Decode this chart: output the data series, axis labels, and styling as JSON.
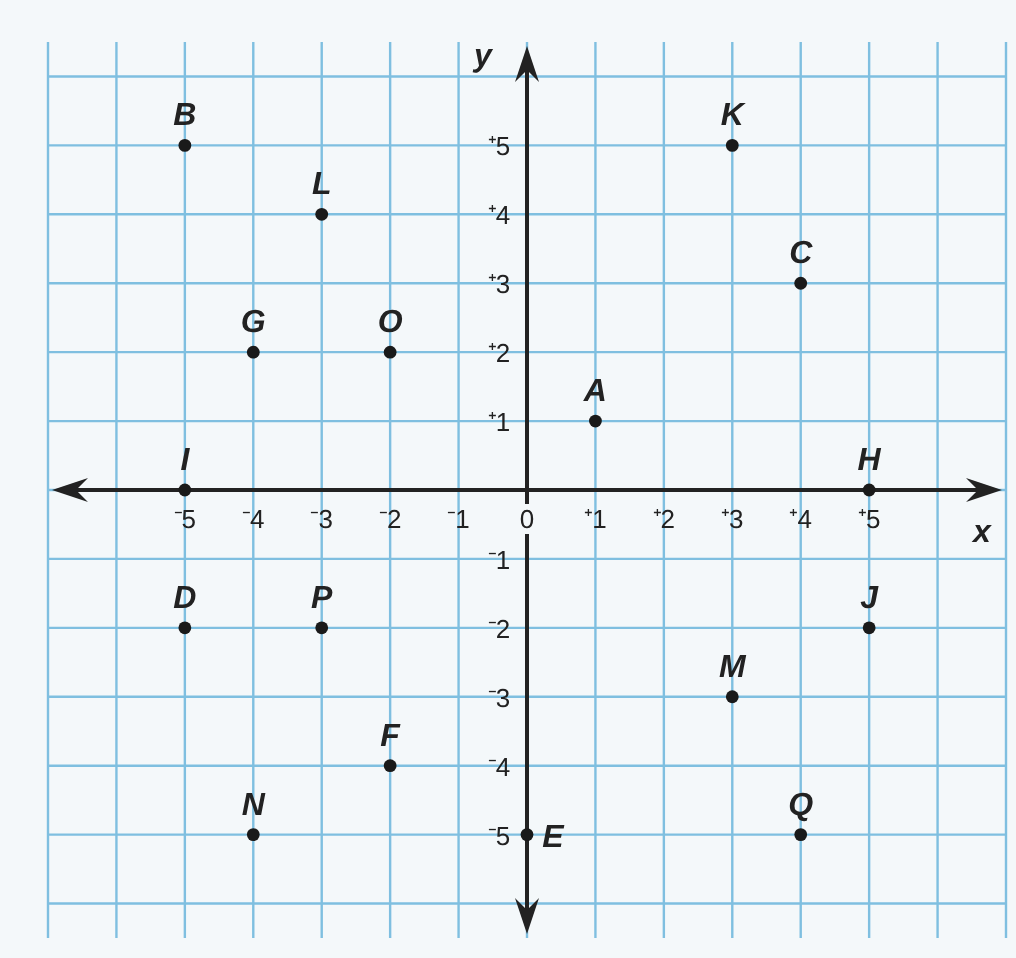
{
  "chart_data": {
    "type": "scatter",
    "xlabel": "x",
    "ylabel": "y",
    "x": [
      1,
      -5,
      4,
      -5,
      0,
      -2,
      -4,
      5,
      -5,
      5,
      3,
      -3,
      3,
      -4,
      -2,
      -3,
      4
    ],
    "values": [
      1,
      5,
      3,
      -2,
      -5,
      -4,
      2,
      0,
      0,
      -2,
      5,
      4,
      -3,
      -5,
      2,
      -2,
      -5
    ],
    "color": "#1a1a1a",
    "marker": "circle",
    "grid": true,
    "xlim": [
      -7,
      7
    ],
    "ylim": [
      -6.5,
      6.5
    ],
    "xticks": [
      {
        "value": -7,
        "label": null
      },
      {
        "value": -6,
        "label": null
      },
      {
        "value": -5,
        "label": "⁻5"
      },
      {
        "value": -4,
        "label": "⁻4"
      },
      {
        "value": -3,
        "label": "⁻3"
      },
      {
        "value": -2,
        "label": "⁻2"
      },
      {
        "value": -1,
        "label": "⁻1"
      },
      0,
      {
        "value": 1,
        "label": "⁺1"
      },
      {
        "value": 2,
        "label": "⁺2"
      },
      {
        "value": 3,
        "label": "⁺3"
      },
      {
        "value": 4,
        "label": "⁺4"
      },
      {
        "value": 5,
        "label": "⁺5"
      },
      {
        "value": 6,
        "label": null
      },
      {
        "value": 7,
        "label": null
      }
    ],
    "yticks": [
      {
        "value": -6,
        "label": null
      },
      {
        "value": -5,
        "label": "⁻5"
      },
      {
        "value": -4,
        "label": "⁻4"
      },
      {
        "value": -3,
        "label": "⁻3"
      },
      {
        "value": -2,
        "label": "⁻2"
      },
      {
        "value": -1,
        "label": "⁻1"
      },
      {
        "value": 0,
        "label": null
      },
      {
        "value": 1,
        "label": "⁺1"
      },
      {
        "value": 2,
        "label": "⁺2"
      },
      {
        "value": 3,
        "label": "⁺3"
      },
      {
        "value": 4,
        "label": "⁺4"
      },
      {
        "value": 5,
        "label": "⁺5"
      },
      {
        "value": 6,
        "label": null
      }
    ],
    "annotations": [
      {
        "text": "A",
        "x": 1,
        "y": 1
      },
      {
        "text": "B",
        "x": -5,
        "y": 5
      },
      {
        "text": "C",
        "x": 4,
        "y": 3
      },
      {
        "text": "D",
        "x": -5,
        "y": -2
      },
      {
        "text": "E",
        "x": 0,
        "y": -5
      },
      {
        "text": "F",
        "x": -2,
        "y": -4
      },
      {
        "text": "G",
        "x": -4,
        "y": 2
      },
      {
        "text": "H",
        "x": 5,
        "y": 0
      },
      {
        "text": "I",
        "x": -5,
        "y": 0
      },
      {
        "text": "J",
        "x": 5,
        "y": -2
      },
      {
        "text": "K",
        "x": 3,
        "y": 5
      },
      {
        "text": "L",
        "x": -3,
        "y": 4
      },
      {
        "text": "M",
        "x": 3,
        "y": -3
      },
      {
        "text": "N",
        "x": -4,
        "y": -5
      },
      {
        "text": "O",
        "x": -2,
        "y": 2
      },
      {
        "text": "P",
        "x": -3,
        "y": -2
      },
      {
        "text": "Q",
        "x": 4,
        "y": -5
      }
    ]
  }
}
